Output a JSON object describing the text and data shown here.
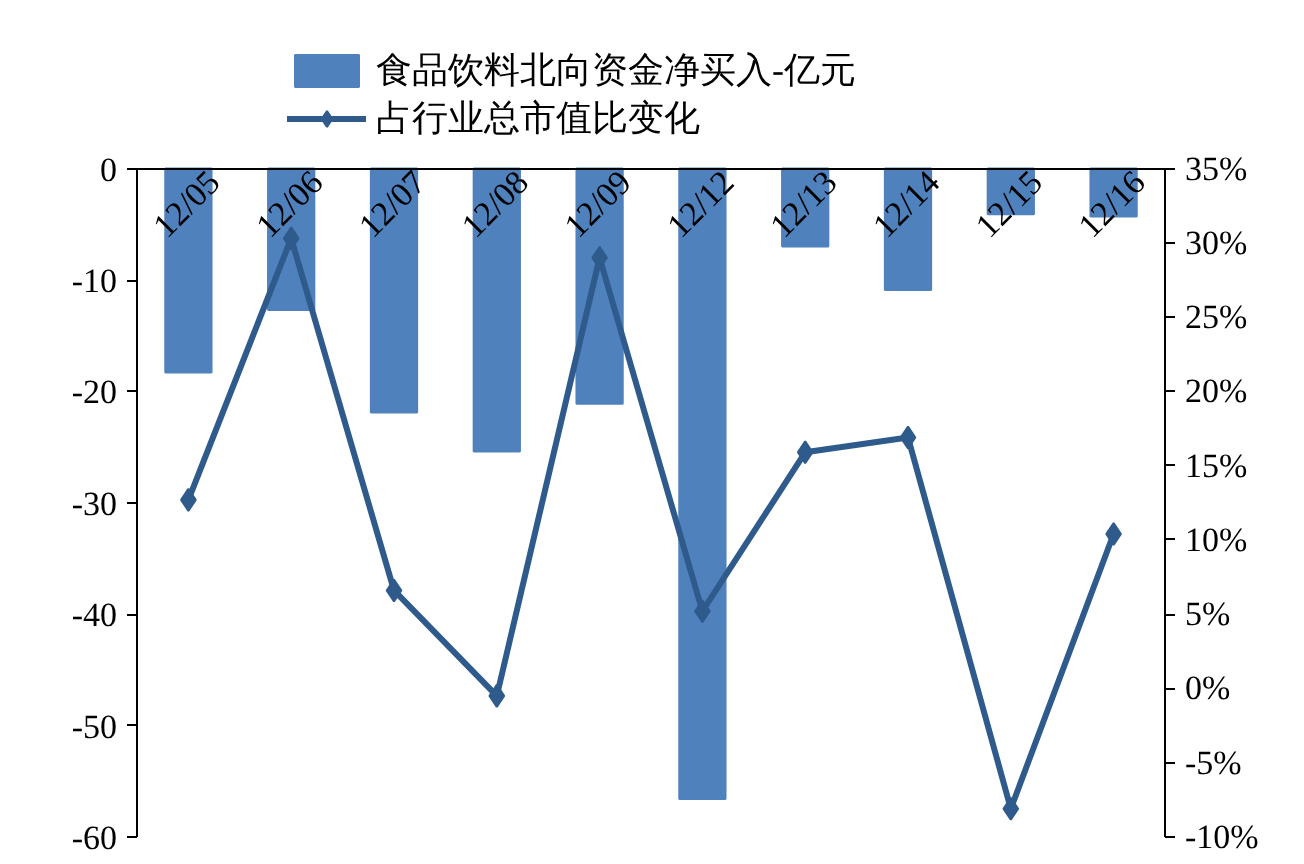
{
  "chart_data": {
    "type": "bar",
    "categories": [
      "12/05",
      "12/06",
      "12/07",
      "12/08",
      "12/09",
      "12/12",
      "12/13",
      "12/14",
      "12/15",
      "12/16"
    ],
    "series": [
      {
        "name": "食品饮料北向资金净买入-亿元",
        "color": "#4f81bd",
        "values": [
          -18.3,
          -12.7,
          -21.9,
          -25.4,
          -21.1,
          -56.6,
          -7.0,
          -10.9,
          -4.1,
          -4.3
        ]
      },
      {
        "name": "占行业总市值比变化",
        "type": "line",
        "axis": "y2",
        "color": "#2f5b8c",
        "marker": "diamond",
        "values": [
          12.7,
          30.3,
          6.6,
          -0.5,
          29.0,
          5.2,
          15.9,
          16.9,
          -8.1,
          10.4
        ]
      }
    ],
    "ylim": [
      -60,
      0
    ],
    "yticks": [
      -60,
      -50,
      -40,
      -30,
      -20,
      -10,
      0
    ],
    "y2lim": [
      -10,
      35
    ],
    "y2ticks": [
      {
        "value": -10,
        "label": "-10%"
      },
      {
        "value": -5,
        "label": "-5%"
      },
      {
        "value": 0,
        "label": "0%"
      },
      {
        "value": 5,
        "label": "5%"
      },
      {
        "value": 10,
        "label": "10%"
      },
      {
        "value": 15,
        "label": "15%"
      },
      {
        "value": 20,
        "label": "20%"
      },
      {
        "value": 25,
        "label": "25%"
      },
      {
        "value": 30,
        "label": "30%"
      },
      {
        "value": 35,
        "label": "35%"
      }
    ],
    "grid": false,
    "legend": "top"
  }
}
